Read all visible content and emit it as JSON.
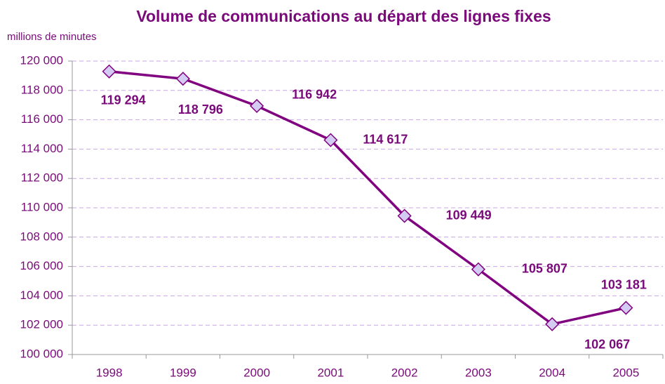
{
  "chart_data": {
    "type": "line",
    "title": "Volume de communications au départ des lignes fixes",
    "y_axis_label": "millions de minutes",
    "categories": [
      "1998",
      "1999",
      "2000",
      "2001",
      "2002",
      "2003",
      "2004",
      "2005"
    ],
    "values": [
      119294,
      118796,
      116942,
      114617,
      109449,
      105807,
      102067,
      103181
    ],
    "value_labels": [
      "119 294",
      "118 796",
      "116 942",
      "114 617",
      "109 449",
      "105 807",
      "102 067",
      "103 181"
    ],
    "color": "#800080",
    "ylim": [
      100000,
      120000
    ],
    "yticks": [
      {
        "value": 100000,
        "label": "100 000"
      },
      {
        "value": 102000,
        "label": "102 000"
      },
      {
        "value": 104000,
        "label": "104 000"
      },
      {
        "value": 106000,
        "label": "106 000"
      },
      {
        "value": 108000,
        "label": "108 000"
      },
      {
        "value": 110000,
        "label": "110 000"
      },
      {
        "value": 112000,
        "label": "112 000"
      },
      {
        "value": 114000,
        "label": "114 000"
      },
      {
        "value": 116000,
        "label": "116 000"
      },
      {
        "value": 118000,
        "label": "118 000"
      },
      {
        "value": 120000,
        "label": "120 000"
      }
    ],
    "grid": true
  }
}
